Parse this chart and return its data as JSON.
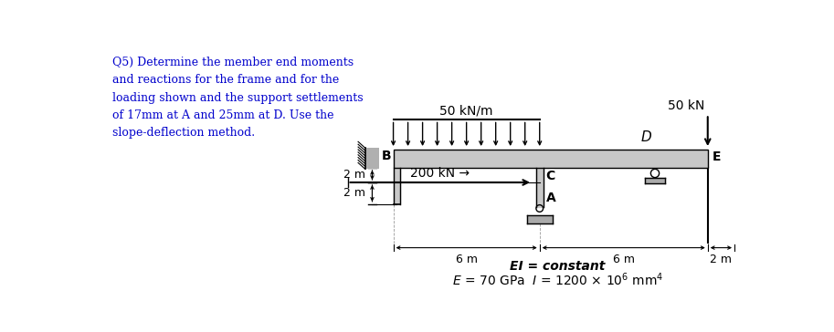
{
  "question_text_lines": [
    "Q5) Determine the member end moments",
    "and reactions for the frame and for the",
    "loading shown and the support settlements",
    "of 17mm at A and 25mm at D. Use the",
    "slope-deflection method."
  ],
  "ei_text": "EI = constant",
  "e_text": "E = 70 GPa  I = 1200 × 10⁶ mm⁴",
  "label_50knm": "50 kN/m",
  "label_50kn": "50 kN",
  "label_200kn": "200 kN →",
  "label_B": "B",
  "label_C": "C",
  "label_D": "D",
  "label_E": "E",
  "label_A": "A",
  "label_2m_top": "2 m",
  "label_2m_mid": "2 m",
  "label_2m_right": "2 m",
  "label_6m_left": "6 m",
  "label_6m_right": "6 m",
  "background_color": "#ffffff",
  "line_color": "#000000",
  "question_text_color": "#0000cc",
  "beam_fill": "#c8c8c8",
  "wall_fill": "#b0b0b0"
}
